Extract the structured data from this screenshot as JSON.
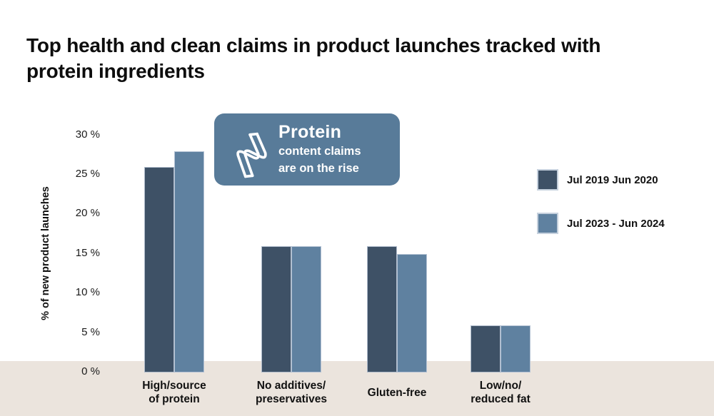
{
  "page": {
    "title": "Top health and clean claims in product launches tracked with protein ingredients",
    "background_color": "#ffffff",
    "footer_band_color": "#ebe4dd"
  },
  "callout": {
    "heading": "Protein",
    "line1": "content claims",
    "line2": "are on the rise",
    "icon": "protein-ribbon-icon",
    "background_color": "#587b99",
    "text_color": "#ffffff"
  },
  "chart_data": {
    "type": "bar",
    "title": "Top health and clean claims in product launches tracked with protein ingredients",
    "xlabel": "",
    "ylabel": "% of new product launches",
    "ylim": [
      0,
      30
    ],
    "ytick_values": [
      0,
      5,
      10,
      15,
      20,
      25,
      30
    ],
    "ytick_labels": [
      "0 %",
      "5 %",
      "10 %",
      "15 %",
      "20 %",
      "25 %",
      "30 %"
    ],
    "grid": false,
    "legend_position": "right",
    "categories": [
      "High/source of protein",
      "No additives/preservatives",
      "Gluten-free",
      "Low/no/reduced fat"
    ],
    "category_label_lines": [
      [
        "High/source",
        "of protein"
      ],
      [
        "No additives/",
        "preservatives"
      ],
      [
        "Gluten-free"
      ],
      [
        "Low/no/",
        "reduced fat"
      ]
    ],
    "series": [
      {
        "name": "Jul 2019 Jun 2020",
        "color": "#3e5166",
        "values": [
          26,
          16,
          16,
          6
        ]
      },
      {
        "name": "Jul 2023 - Jun 2024",
        "color": "#5f81a0",
        "values": [
          28,
          16,
          15,
          6
        ]
      }
    ]
  }
}
